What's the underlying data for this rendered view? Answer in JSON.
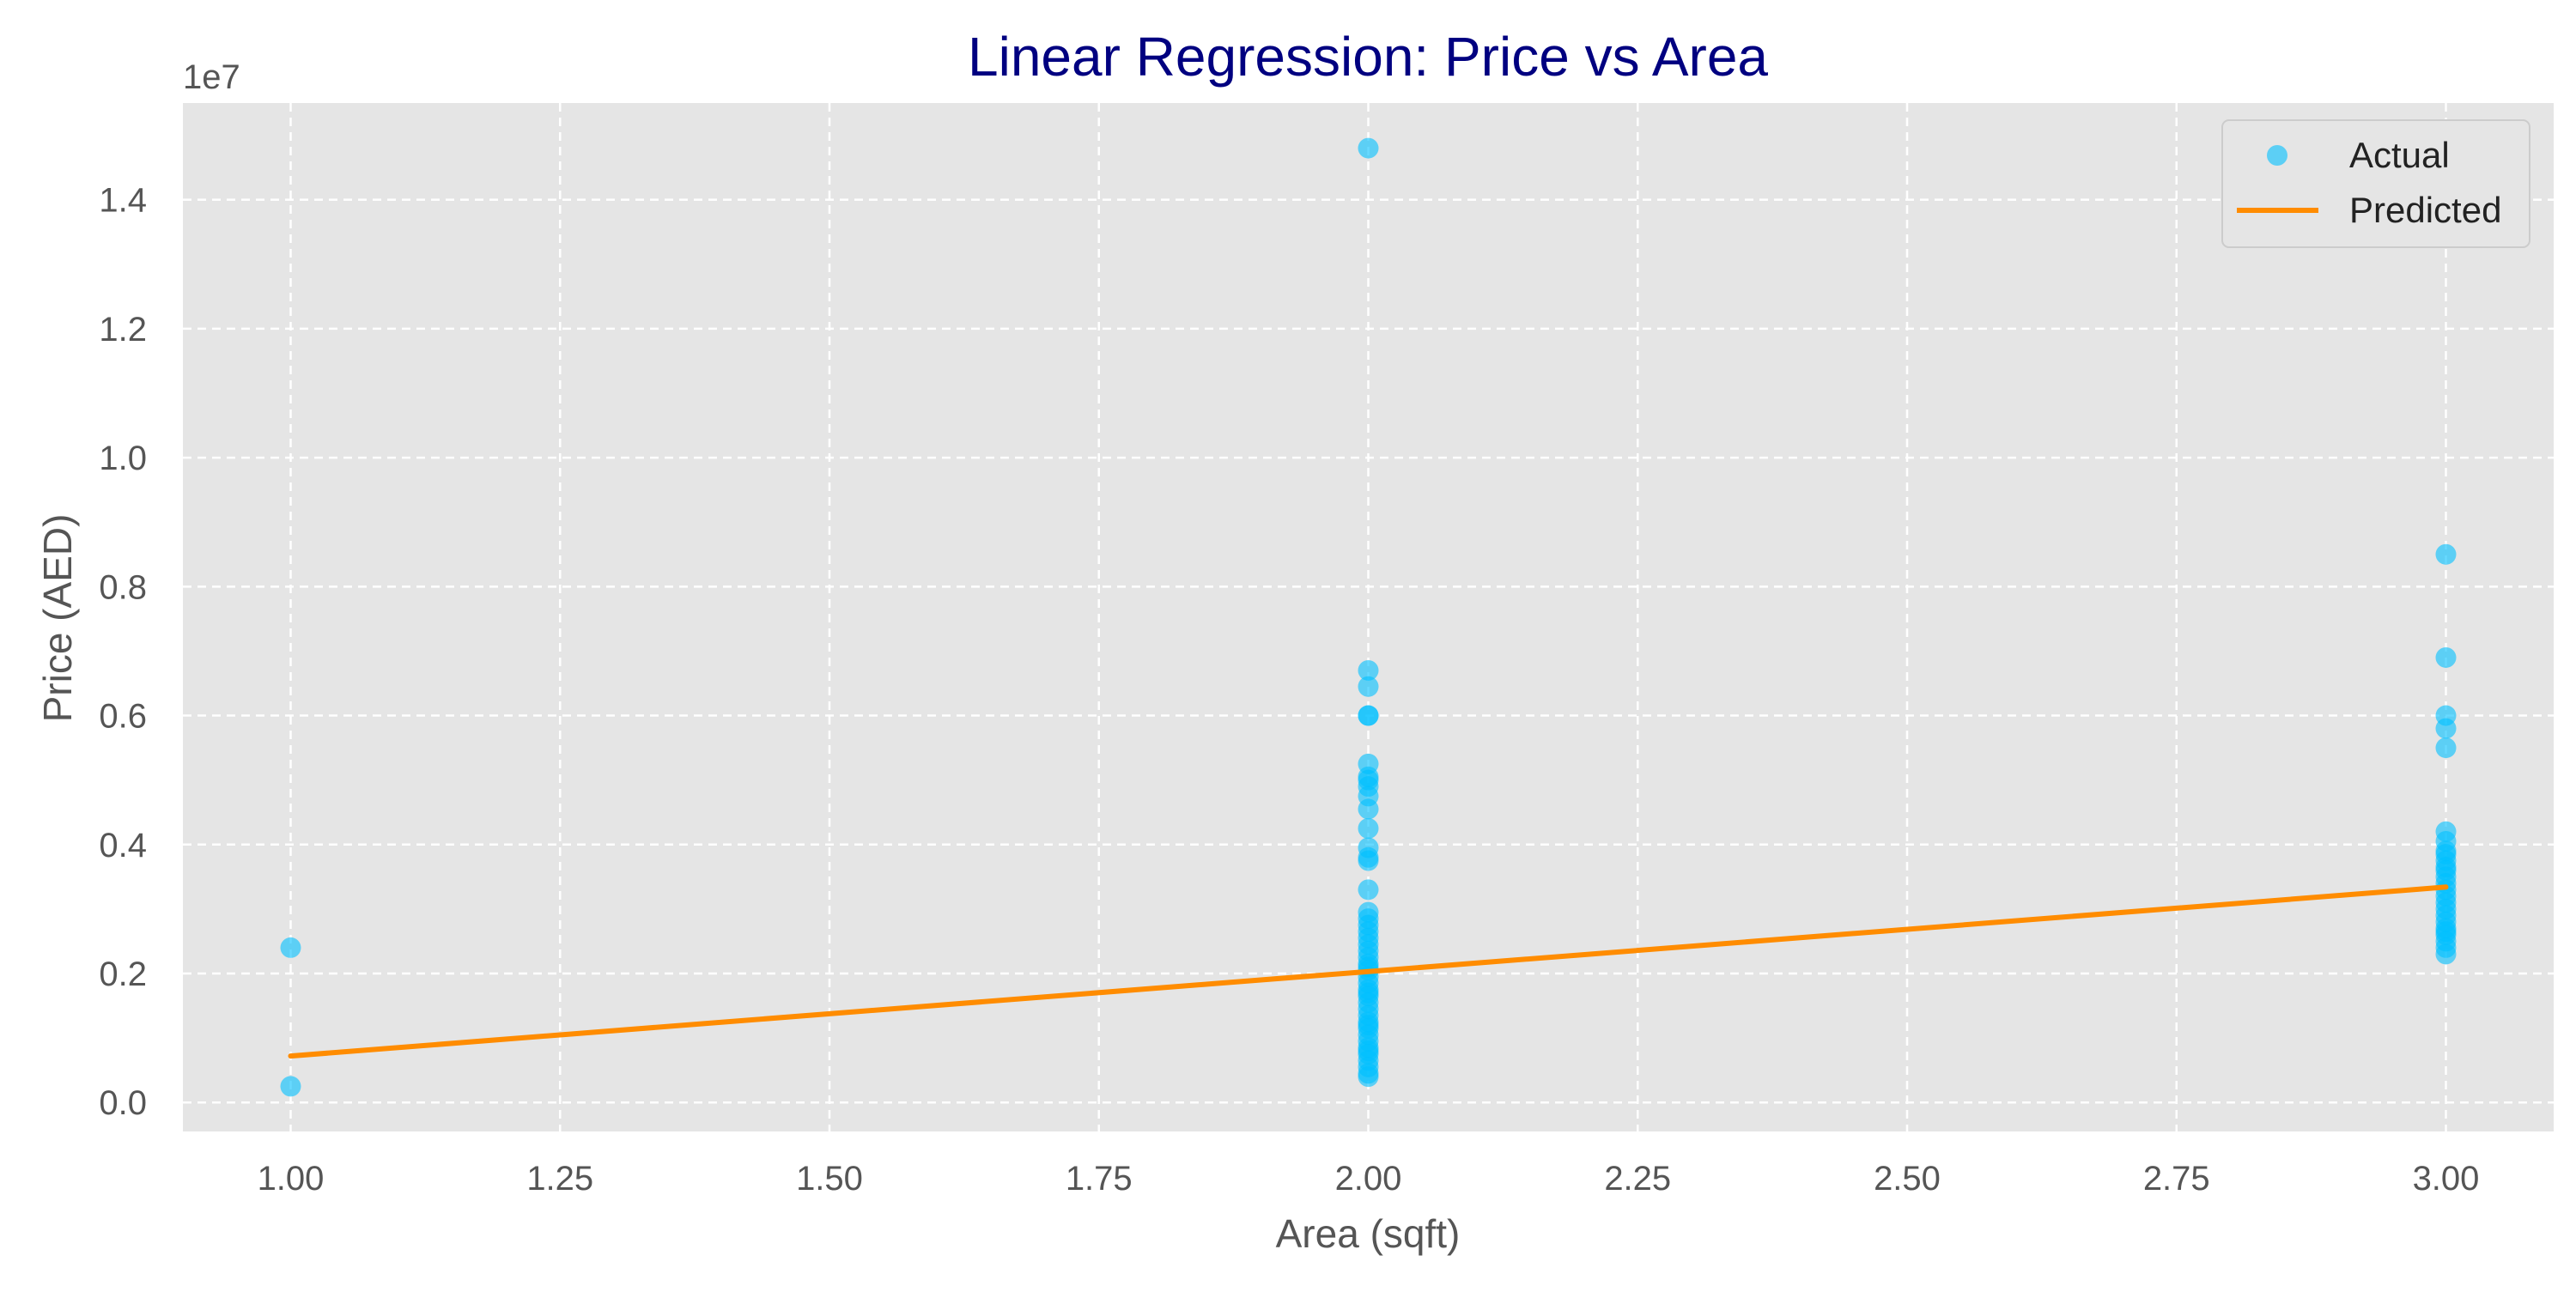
{
  "chart_data": {
    "type": "scatter",
    "title": "Linear Regression: Price vs Area",
    "xlabel": "Area (sqft)",
    "ylabel": "Price (AED)",
    "y_offset_label": "1e7",
    "y_scale": 10000000,
    "xlim": [
      0.9,
      3.1
    ],
    "ylim": [
      -450000,
      15500000
    ],
    "x_ticks": [
      1.0,
      1.25,
      1.5,
      1.75,
      2.0,
      2.25,
      2.5,
      2.75,
      3.0
    ],
    "x_tick_labels": [
      "1.00",
      "1.25",
      "1.50",
      "1.75",
      "2.00",
      "2.25",
      "2.50",
      "2.75",
      "3.00"
    ],
    "y_ticks": [
      0,
      2000000,
      4000000,
      6000000,
      8000000,
      10000000,
      12000000,
      14000000
    ],
    "y_tick_labels": [
      "0.0",
      "0.2",
      "0.4",
      "0.6",
      "0.8",
      "1.0",
      "1.2",
      "1.4"
    ],
    "grid": true,
    "legend_position": "top-right",
    "series": [
      {
        "name": "Actual",
        "type": "scatter",
        "color": "#00bfff",
        "x": [
          1,
          1,
          2,
          2,
          2,
          2,
          2,
          2,
          2,
          2,
          2,
          2,
          2,
          2,
          2,
          2,
          2,
          2,
          2,
          2,
          2,
          2,
          2,
          2,
          2,
          2,
          2,
          2,
          2,
          2,
          2,
          2,
          2,
          2,
          2,
          2,
          2,
          2,
          2,
          2,
          2,
          2,
          2,
          2,
          2,
          2,
          2,
          2,
          2,
          3,
          3,
          3,
          3,
          3,
          3,
          3,
          3,
          3,
          3,
          3,
          3,
          3,
          3,
          3,
          3,
          3,
          3,
          3,
          3,
          3,
          3,
          3,
          3,
          3,
          3
        ],
        "y": [
          2400000,
          250000,
          14800000,
          6700000,
          6450000,
          6000000,
          6000000,
          5250000,
          5000000,
          4900000,
          4750000,
          4550000,
          4250000,
          3950000,
          3750000,
          3300000,
          2950000,
          2850000,
          2750000,
          2650000,
          2550000,
          2450000,
          2350000,
          2250000,
          2150000,
          2050000,
          1950000,
          1850000,
          1750000,
          1650000,
          1550000,
          1450000,
          1350000,
          1250000,
          1150000,
          1050000,
          950000,
          850000,
          750000,
          650000,
          550000,
          450000,
          400000,
          5050000,
          3800000,
          2100000,
          1700000,
          1200000,
          800000,
          8500000,
          6900000,
          6000000,
          5800000,
          5500000,
          4200000,
          4050000,
          3900000,
          3750000,
          3600000,
          3500000,
          3400000,
          3300000,
          3200000,
          2900000,
          2800000,
          2700000,
          2600000,
          2500000,
          2400000,
          2300000,
          3100000,
          3000000,
          2650000,
          3650000,
          3850000
        ]
      },
      {
        "name": "Predicted",
        "type": "line",
        "color": "#ff8c00",
        "x": [
          1.0,
          2.0,
          3.0
        ],
        "y": [
          720000,
          2030000,
          3340000
        ]
      }
    ]
  }
}
